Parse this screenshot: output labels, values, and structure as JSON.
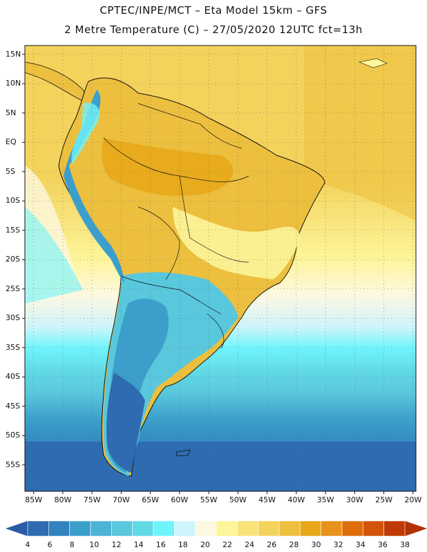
{
  "header": {
    "line1": "CPTEC/INPE/MCT –  Eta Model 15km – GFS",
    "line2": "2 Metre Temperature (C) – 27/05/2020 12UTC fct=13h"
  },
  "map": {
    "lat_labels": [
      "15N",
      "10N",
      "5N",
      "EQ",
      "5S",
      "10S",
      "15S",
      "20S",
      "25S",
      "30S",
      "35S",
      "40S",
      "45S",
      "50S",
      "55S"
    ],
    "lon_labels": [
      "85W",
      "80W",
      "75W",
      "70W",
      "65W",
      "60W",
      "55W",
      "50W",
      "45W",
      "40W",
      "35W",
      "30W",
      "25W",
      "20W"
    ]
  },
  "colorbar": {
    "labels": [
      "4",
      "6",
      "8",
      "10",
      "12",
      "14",
      "16",
      "18",
      "20",
      "22",
      "24",
      "26",
      "28",
      "30",
      "32",
      "34",
      "36",
      "38"
    ],
    "colors": [
      "#2e6bb0",
      "#3282bd",
      "#3c9fcb",
      "#4cb4d6",
      "#59c7dc",
      "#62dae6",
      "#6ff4fb",
      "#d0f4fb",
      "#fdf8e1",
      "#fdf59a",
      "#f7e37a",
      "#f3d35c",
      "#ecbf3e",
      "#e7a718",
      "#e7921a",
      "#de6e0c",
      "#d3530a",
      "#c03a05"
    ],
    "low_color": "#2a5ba6",
    "high_color": "#b23305"
  }
}
